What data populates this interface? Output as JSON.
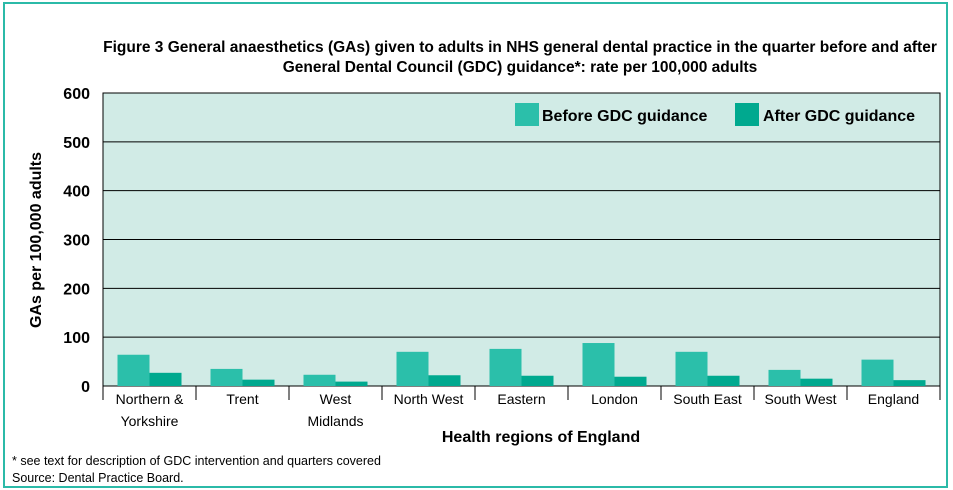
{
  "footnote": "* see text for description of GDC intervention and quarters covered",
  "source": "Source: Dental Practice Board.",
  "chart_data": {
    "type": "bar",
    "title": "Figure 3 General anaesthetics (GAs) given to adults in NHS general dental practice in the quarter before and after General Dental Council (GDC) guidance*: rate per 100,000 adults",
    "xlabel": "Health regions of England",
    "ylabel": "GAs per 100,000 adults",
    "ylim": [
      0,
      600
    ],
    "yticks": [
      0,
      100,
      200,
      300,
      400,
      500,
      600
    ],
    "grid": true,
    "legend_position": "top-right",
    "categories": [
      [
        "Northern &",
        "Yorkshire"
      ],
      [
        "Trent"
      ],
      [
        "West",
        "Midlands"
      ],
      [
        "North West"
      ],
      [
        "Eastern"
      ],
      [
        "London"
      ],
      [
        "South East"
      ],
      [
        "South West"
      ],
      [
        "England"
      ]
    ],
    "series": [
      {
        "name": "Before GDC guidance",
        "color": "#2bbfaa",
        "values": [
          64,
          35,
          23,
          70,
          76,
          88,
          70,
          33,
          54
        ]
      },
      {
        "name": "After GDC guidance",
        "color": "#00a98f",
        "values": [
          27,
          13,
          9,
          22,
          21,
          19,
          21,
          15,
          12
        ]
      }
    ],
    "colors": {
      "plot_background": "#d1ebe6",
      "frame": "#2bbaa8"
    }
  }
}
